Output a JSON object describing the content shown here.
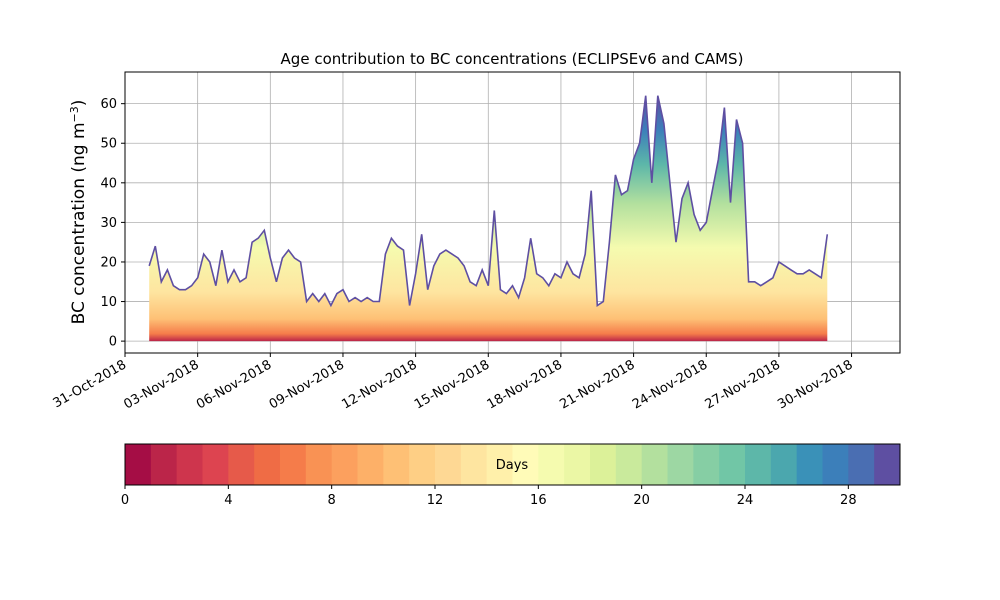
{
  "chart_data": {
    "type": "area",
    "title": "Age contribution to BC concentrations (ECLIPSEv6 and CAMS)",
    "xlabel": "",
    "ylabel": "BC concentration (ng m",
    "ylabel_superscript": "−3",
    "ylabel_close": ")",
    "x_tick_labels": [
      "31-Oct-2018",
      "03-Nov-2018",
      "06-Nov-2018",
      "09-Nov-2018",
      "12-Nov-2018",
      "15-Nov-2018",
      "18-Nov-2018",
      "21-Nov-2018",
      "24-Nov-2018",
      "27-Nov-2018",
      "30-Nov-2018"
    ],
    "y_ticks": [
      0,
      10,
      20,
      30,
      40,
      50,
      60
    ],
    "xlim": [
      "2018-10-31",
      "2018-12-02"
    ],
    "ylim": [
      -3,
      68
    ],
    "grid": true,
    "total": {
      "x_start": "2018-11-01",
      "step_days": 0.25,
      "values": [
        19,
        24,
        15,
        18,
        14,
        13,
        13,
        14,
        16,
        22,
        20,
        14,
        23,
        15,
        18,
        15,
        16,
        25,
        26,
        28,
        21,
        15,
        21,
        23,
        21,
        20,
        10,
        12,
        10,
        12,
        9,
        12,
        13,
        10,
        11,
        10,
        11,
        10,
        10,
        22,
        26,
        24,
        23,
        9,
        17,
        27,
        13,
        19,
        22,
        23,
        22,
        21,
        19,
        15,
        14,
        18,
        14,
        33,
        13,
        12,
        14,
        11,
        16,
        26,
        17,
        16,
        14,
        17,
        16,
        20,
        17,
        16,
        22,
        38,
        9,
        10,
        25,
        42,
        37,
        38,
        46,
        50,
        62,
        40,
        62,
        55,
        40,
        25,
        36,
        40,
        32,
        28,
        30,
        38,
        46,
        59,
        35,
        56,
        50,
        15,
        15,
        14,
        15,
        16,
        20,
        19,
        18,
        17,
        17,
        18,
        17,
        16,
        27
      ]
    },
    "colorbar": {
      "label": "Days",
      "min": 0,
      "max": 30,
      "ticks": [
        0,
        4,
        8,
        12,
        16,
        20,
        24,
        28
      ],
      "colors": [
        "#a50d45",
        "#bb2549",
        "#ce354d",
        "#dd4450",
        "#e65a4a",
        "#ef6c45",
        "#f57c4a",
        "#f99254",
        "#fca05e",
        "#fdb068",
        "#fec075",
        "#fecf85",
        "#fed894",
        "#fee5a0",
        "#fff0aa",
        "#fffbb8",
        "#f5fbaf",
        "#ebf7a5",
        "#dcf199",
        "#c9ea9c",
        "#b3e09e",
        "#9dd7a3",
        "#86cea4",
        "#71c6a6",
        "#5db7a9",
        "#4ba7ae",
        "#3a91b8",
        "#3c7fba",
        "#4a6eb2",
        "#5e4fa2"
      ]
    }
  }
}
